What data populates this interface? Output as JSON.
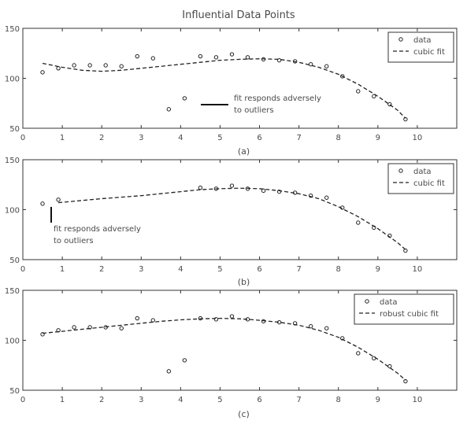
{
  "figure": {
    "title": "Influential Data Points"
  },
  "chart_data": [
    {
      "type": "scatter",
      "panel_label": "(a)",
      "xlim": [
        0,
        11
      ],
      "ylim": [
        50,
        150
      ],
      "xticks": [
        0,
        1,
        2,
        3,
        4,
        5,
        6,
        7,
        8,
        9,
        10
      ],
      "yticks": [
        50,
        100,
        150
      ],
      "grid": false,
      "legend": {
        "placement": "top-right",
        "entries": [
          "data",
          "cubic fit"
        ]
      },
      "annotation": {
        "text_lines": [
          "fit responds adversely",
          "to outliers"
        ],
        "x": 5.0,
        "y": 73
      },
      "series": [
        {
          "name": "data",
          "style": "markers",
          "x": [
            0.5,
            0.9,
            1.3,
            1.7,
            2.1,
            2.5,
            2.9,
            3.3,
            3.7,
            4.1,
            4.5,
            4.9,
            5.3,
            5.7,
            6.1,
            6.5,
            6.9,
            7.3,
            7.7,
            8.1,
            8.5,
            8.9,
            9.3,
            9.7
          ],
          "y": [
            106,
            110,
            113,
            113,
            113,
            112,
            122,
            120,
            69,
            80,
            122,
            121,
            124,
            121,
            119,
            118,
            117,
            114,
            112,
            102,
            87,
            82,
            74,
            59
          ]
        },
        {
          "name": "cubic fit",
          "style": "dashed",
          "x": [
            0.5,
            1.0,
            1.5,
            2.0,
            2.5,
            3.0,
            3.5,
            4.0,
            4.5,
            5.0,
            5.5,
            6.0,
            6.5,
            7.0,
            7.5,
            8.0,
            8.5,
            9.0,
            9.5,
            9.7
          ],
          "y": [
            115,
            111,
            108,
            107,
            108,
            110,
            112,
            114,
            116,
            118,
            119,
            119.5,
            119,
            116,
            111,
            104,
            94,
            82,
            68,
            60
          ]
        }
      ]
    },
    {
      "type": "scatter",
      "panel_label": "(b)",
      "xlim": [
        0,
        11
      ],
      "ylim": [
        50,
        150
      ],
      "xticks": [
        0,
        1,
        2,
        3,
        4,
        5,
        6,
        7,
        8,
        9,
        10
      ],
      "yticks": [
        50,
        100,
        150
      ],
      "grid": false,
      "legend": {
        "placement": "top-right",
        "entries": [
          "data",
          "cubic fit"
        ]
      },
      "annotation": {
        "text_lines": [
          "fit responds adversely",
          "to outliers"
        ],
        "x": 0.7,
        "y": 77
      },
      "series": [
        {
          "name": "data",
          "style": "markers",
          "x": [
            0.5,
            0.9,
            4.5,
            4.9,
            5.3,
            5.7,
            6.1,
            6.5,
            6.9,
            7.3,
            7.7,
            8.1,
            8.5,
            8.9,
            9.3,
            9.7
          ],
          "y": [
            106,
            110,
            122,
            121,
            124,
            121,
            119,
            118,
            117,
            114,
            112,
            102,
            87,
            82,
            74,
            59
          ]
        },
        {
          "name": "cubic fit",
          "style": "dashed",
          "x": [
            0.9,
            2.0,
            3.0,
            4.0,
            4.5,
            5.0,
            5.5,
            6.0,
            6.5,
            7.0,
            7.5,
            8.0,
            8.5,
            9.0,
            9.5,
            9.7
          ],
          "y": [
            107,
            111,
            114,
            118,
            120,
            121,
            121.5,
            121,
            119,
            116,
            111,
            103,
            93,
            81,
            67,
            60
          ]
        }
      ]
    },
    {
      "type": "scatter",
      "panel_label": "(c)",
      "xlim": [
        0,
        11
      ],
      "ylim": [
        50,
        150
      ],
      "xticks": [
        0,
        1,
        2,
        3,
        4,
        5,
        6,
        7,
        8,
        9,
        10
      ],
      "yticks": [
        50,
        100,
        150
      ],
      "grid": false,
      "legend": {
        "placement": "top-right",
        "entries": [
          "data",
          "robust cubic fit"
        ]
      },
      "series": [
        {
          "name": "data",
          "style": "markers",
          "x": [
            0.5,
            0.9,
            1.3,
            1.7,
            2.1,
            2.5,
            2.9,
            3.3,
            3.7,
            4.1,
            4.5,
            4.9,
            5.3,
            5.7,
            6.1,
            6.5,
            6.9,
            7.3,
            7.7,
            8.1,
            8.5,
            8.9,
            9.3,
            9.7
          ],
          "y": [
            106,
            110,
            113,
            113,
            113,
            112,
            122,
            120,
            69,
            80,
            122,
            121,
            124,
            121,
            119,
            118,
            117,
            114,
            112,
            102,
            87,
            82,
            74,
            59
          ]
        },
        {
          "name": "robust cubic fit",
          "style": "dashed",
          "x": [
            0.5,
            1.0,
            1.5,
            2.0,
            2.5,
            3.0,
            3.5,
            4.0,
            4.5,
            5.0,
            5.5,
            6.0,
            6.5,
            7.0,
            7.5,
            8.0,
            8.5,
            9.0,
            9.5,
            9.7
          ],
          "y": [
            107,
            109,
            111,
            113,
            115,
            117,
            119,
            120.5,
            121.5,
            122,
            121.5,
            120,
            118,
            115,
            110,
            103,
            93,
            81,
            67,
            60
          ]
        }
      ]
    }
  ]
}
